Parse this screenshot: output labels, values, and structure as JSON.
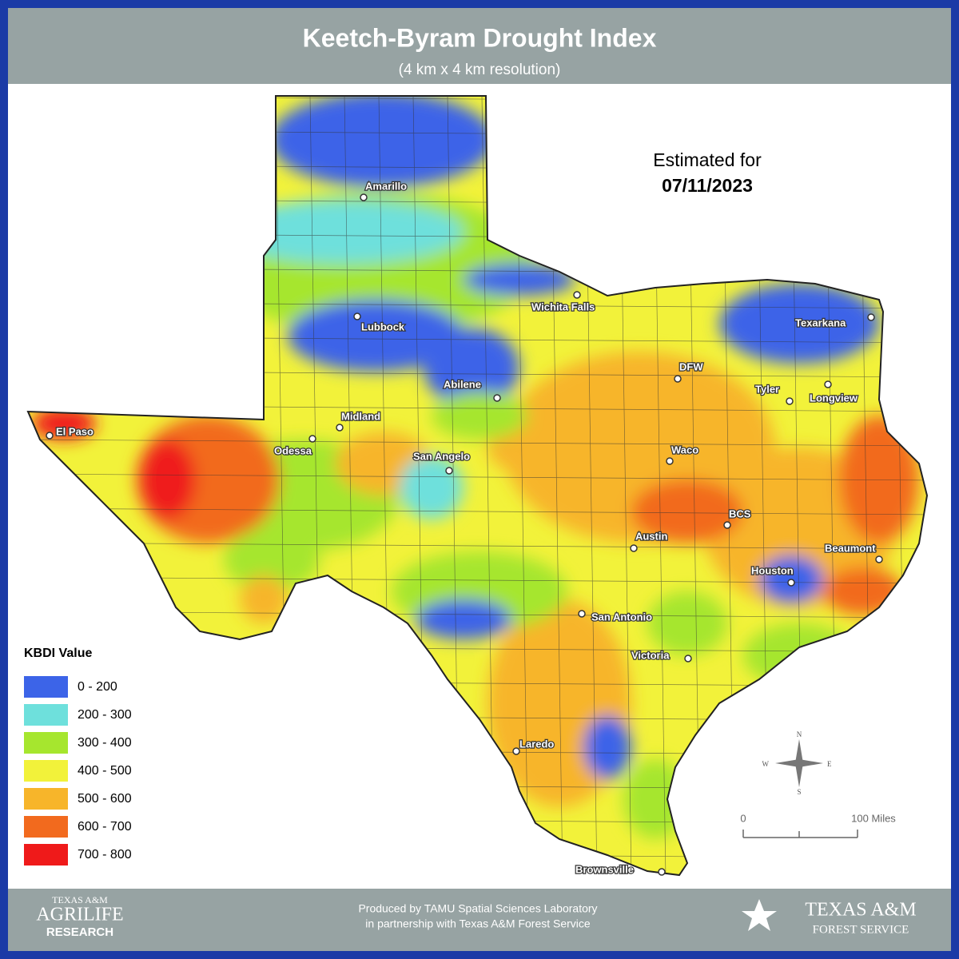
{
  "header": {
    "title": "Keetch-Byram Drought Index",
    "subtitle": "(4 km x 4 km resolution)"
  },
  "estimate": {
    "label": "Estimated for",
    "date": "07/11/2023"
  },
  "cities": [
    "Amarillo",
    "Lubbock",
    "Wichita Falls",
    "Texarkana",
    "Abilene",
    "DFW",
    "Tyler",
    "Longview",
    "El Paso",
    "Midland",
    "Odessa",
    "San Angelo",
    "Waco",
    "BCS",
    "Austin",
    "Beaumont",
    "Houston",
    "San Antonio",
    "Victoria",
    "Laredo",
    "Brownsville"
  ],
  "legend": {
    "title": "KBDI Value",
    "items": [
      {
        "label": "0 - 200",
        "color": "#3c64e8"
      },
      {
        "label": "200 - 300",
        "color": "#6ee0dc"
      },
      {
        "label": "300 - 400",
        "color": "#a6e62e"
      },
      {
        "label": "400 - 500",
        "color": "#f2f23a"
      },
      {
        "label": "500 - 600",
        "color": "#f7b52a"
      },
      {
        "label": "600 - 700",
        "color": "#f26a1e"
      },
      {
        "label": "700 - 800",
        "color": "#ef1a1a"
      }
    ]
  },
  "scale": {
    "start": "0",
    "end": "100 Miles"
  },
  "compass": {
    "n": "N",
    "e": "E",
    "s": "S",
    "w": "W"
  },
  "footer": {
    "left": [
      "TEXAS A&M",
      "AGRILIFE",
      "RESEARCH"
    ],
    "credit": [
      "Produced by TAMU Spatial Sciences Laboratory",
      "in partnership with Texas A&M Forest Service"
    ],
    "right": [
      "TEXAS A&M",
      "FOREST SERVICE"
    ]
  }
}
